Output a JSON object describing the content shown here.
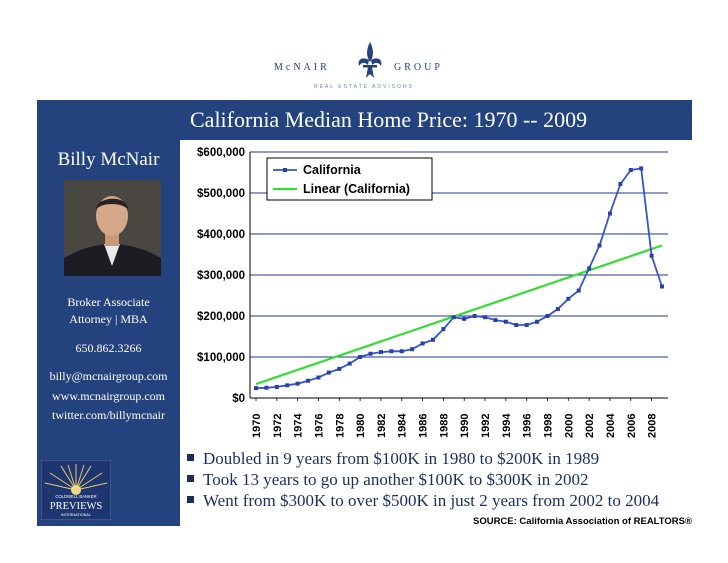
{
  "header": {
    "company_left": "McNAIR",
    "company_right": "GROUP",
    "tagline": "REAL ESTATE ADVISORS"
  },
  "sidebar": {
    "name": "Billy McNair",
    "title_line1": "Broker Associate",
    "title_line2": "Attorney | MBA",
    "phone": "650.862.3266",
    "email": "billy@mcnairgroup.com",
    "website": "www.mcnairgroup.com",
    "twitter": "twitter.com/billymcnair",
    "brand_top": "COLDWELL BANKER",
    "brand_main": "PREVIEWS",
    "brand_bottom": "INTERNATIONAL"
  },
  "slide": {
    "title": "California Median Home Price:   1970 -- 2009",
    "bullets": [
      "Doubled in 9 years from $100K in 1980 to $200K in 1989",
      "Took 13 years to go up another $100K to $300K in 2002",
      "Went from $300K to over $500K in just 2 years from 2002 to 2004"
    ],
    "source": "SOURCE: California Association of REALTORS®"
  },
  "colors": {
    "brand_navy": "#24437e",
    "series_blue": "#3355cc",
    "trend_green": "#33dd33"
  },
  "chart_data": {
    "type": "line",
    "title": "",
    "xlabel": "",
    "ylabel": "",
    "ylim": [
      0,
      600000
    ],
    "yticks": [
      0,
      100000,
      200000,
      300000,
      400000,
      500000,
      600000
    ],
    "ytick_labels": [
      "$0",
      "$100,000",
      "$200,000",
      "$300,000",
      "$400,000",
      "$500,000",
      "$600,000"
    ],
    "xtick_labels": [
      "1970",
      "1972",
      "1974",
      "1976",
      "1978",
      "1980",
      "1982",
      "1984",
      "1986",
      "1988",
      "1990",
      "1992",
      "1994",
      "1996",
      "1998",
      "2000",
      "2002",
      "2004",
      "2006",
      "2008"
    ],
    "x": [
      1970,
      1971,
      1972,
      1973,
      1974,
      1975,
      1976,
      1977,
      1978,
      1979,
      1980,
      1981,
      1982,
      1983,
      1984,
      1985,
      1986,
      1987,
      1988,
      1989,
      1990,
      1991,
      1992,
      1993,
      1994,
      1995,
      1996,
      1997,
      1998,
      1999,
      2000,
      2001,
      2002,
      2003,
      2004,
      2005,
      2006,
      2007,
      2008,
      2009
    ],
    "legend_position": "top",
    "series": [
      {
        "name": "California",
        "marker": "square",
        "values": [
          24000,
          25000,
          27000,
          31000,
          35000,
          42000,
          50000,
          62000,
          71000,
          84000,
          100000,
          108000,
          112000,
          114000,
          114000,
          119000,
          133000,
          142000,
          168000,
          197000,
          193000,
          200000,
          197000,
          190000,
          186000,
          178000,
          178000,
          186000,
          200000,
          217000,
          242000,
          262000,
          316000,
          372000,
          450000,
          522000,
          556000,
          560000,
          347000,
          272000
        ]
      },
      {
        "name": "Linear (California)",
        "marker": "none",
        "trend": [
          34000,
          372000
        ]
      }
    ]
  }
}
